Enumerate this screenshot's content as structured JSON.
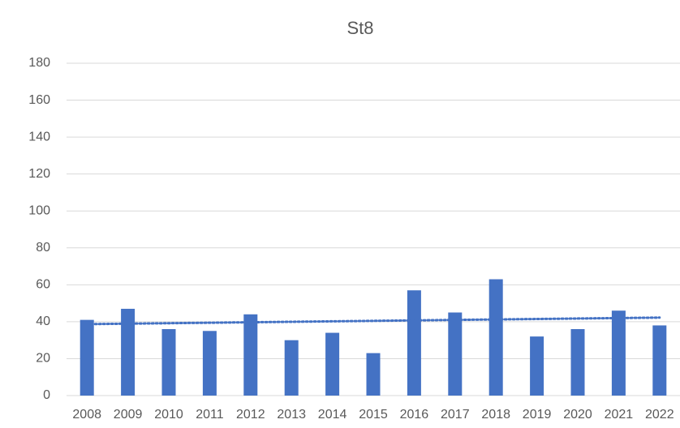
{
  "chart_data": {
    "type": "bar",
    "title": "St8",
    "categories": [
      "2008",
      "2009",
      "2010",
      "2011",
      "2012",
      "2013",
      "2014",
      "2015",
      "2016",
      "2017",
      "2018",
      "2019",
      "2020",
      "2021",
      "2022"
    ],
    "values": [
      41,
      47,
      36,
      35,
      44,
      30,
      34,
      23,
      57,
      45,
      63,
      32,
      36,
      46,
      38
    ],
    "color": "#4472c4",
    "ylim": [
      0,
      180
    ],
    "yticks": [
      0,
      20,
      40,
      60,
      80,
      100,
      120,
      140,
      160,
      180
    ],
    "grid": true,
    "trendline": "linear"
  }
}
